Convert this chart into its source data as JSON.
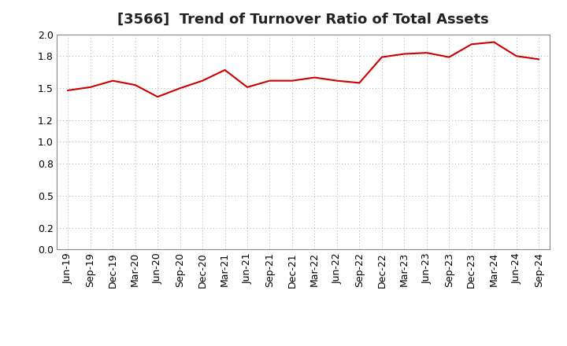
{
  "title": "[3566]  Trend of Turnover Ratio of Total Assets",
  "x_labels": [
    "Jun-19",
    "Sep-19",
    "Dec-19",
    "Mar-20",
    "Jun-20",
    "Sep-20",
    "Dec-20",
    "Mar-21",
    "Jun-21",
    "Sep-21",
    "Dec-21",
    "Mar-22",
    "Jun-22",
    "Sep-22",
    "Dec-22",
    "Mar-23",
    "Jun-23",
    "Sep-23",
    "Dec-23",
    "Mar-24",
    "Jun-24",
    "Sep-24"
  ],
  "values": [
    1.48,
    1.51,
    1.57,
    1.53,
    1.42,
    1.5,
    1.57,
    1.67,
    1.51,
    1.57,
    1.57,
    1.6,
    1.57,
    1.55,
    1.79,
    1.82,
    1.83,
    1.79,
    1.91,
    1.93,
    1.8,
    1.77
  ],
  "line_color": "#cc0000",
  "line_width": 1.5,
  "ylim": [
    0.0,
    2.0
  ],
  "yticks": [
    0.0,
    0.2,
    0.5,
    0.8,
    1.0,
    1.2,
    1.5,
    1.8,
    2.0
  ],
  "background_color": "#ffffff",
  "grid_color": "#aaaaaa",
  "title_fontsize": 13,
  "tick_fontsize": 9,
  "title_fontweight": "bold"
}
